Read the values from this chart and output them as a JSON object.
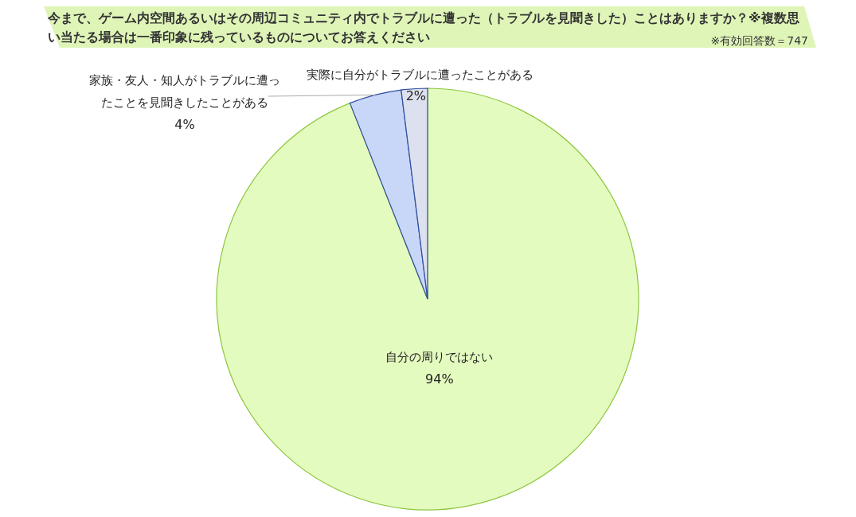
{
  "chart_data": {
    "type": "pie",
    "title": "今まで、ゲーム内空間あるいはその周辺コミュニティ内でトラブルに遭った（トラブルを見聞きした）ことはありますか？※複数思い当たる場合は一番印象に残っているものについてお答えください",
    "annotations": [
      "※有効回答数＝747"
    ],
    "categories": [
      "自分の周りではない",
      "家族・友人・知人がトラブルに遭ったことを見聞きしたことがある",
      "実際に自分がトラブルに遭ったことがある"
    ],
    "values": [
      94,
      4,
      2
    ],
    "colors": [
      "#e4fbbf",
      "#c8d6f8",
      "#dde0ee"
    ],
    "value_labels": [
      "94%",
      "4%",
      "2%"
    ]
  }
}
